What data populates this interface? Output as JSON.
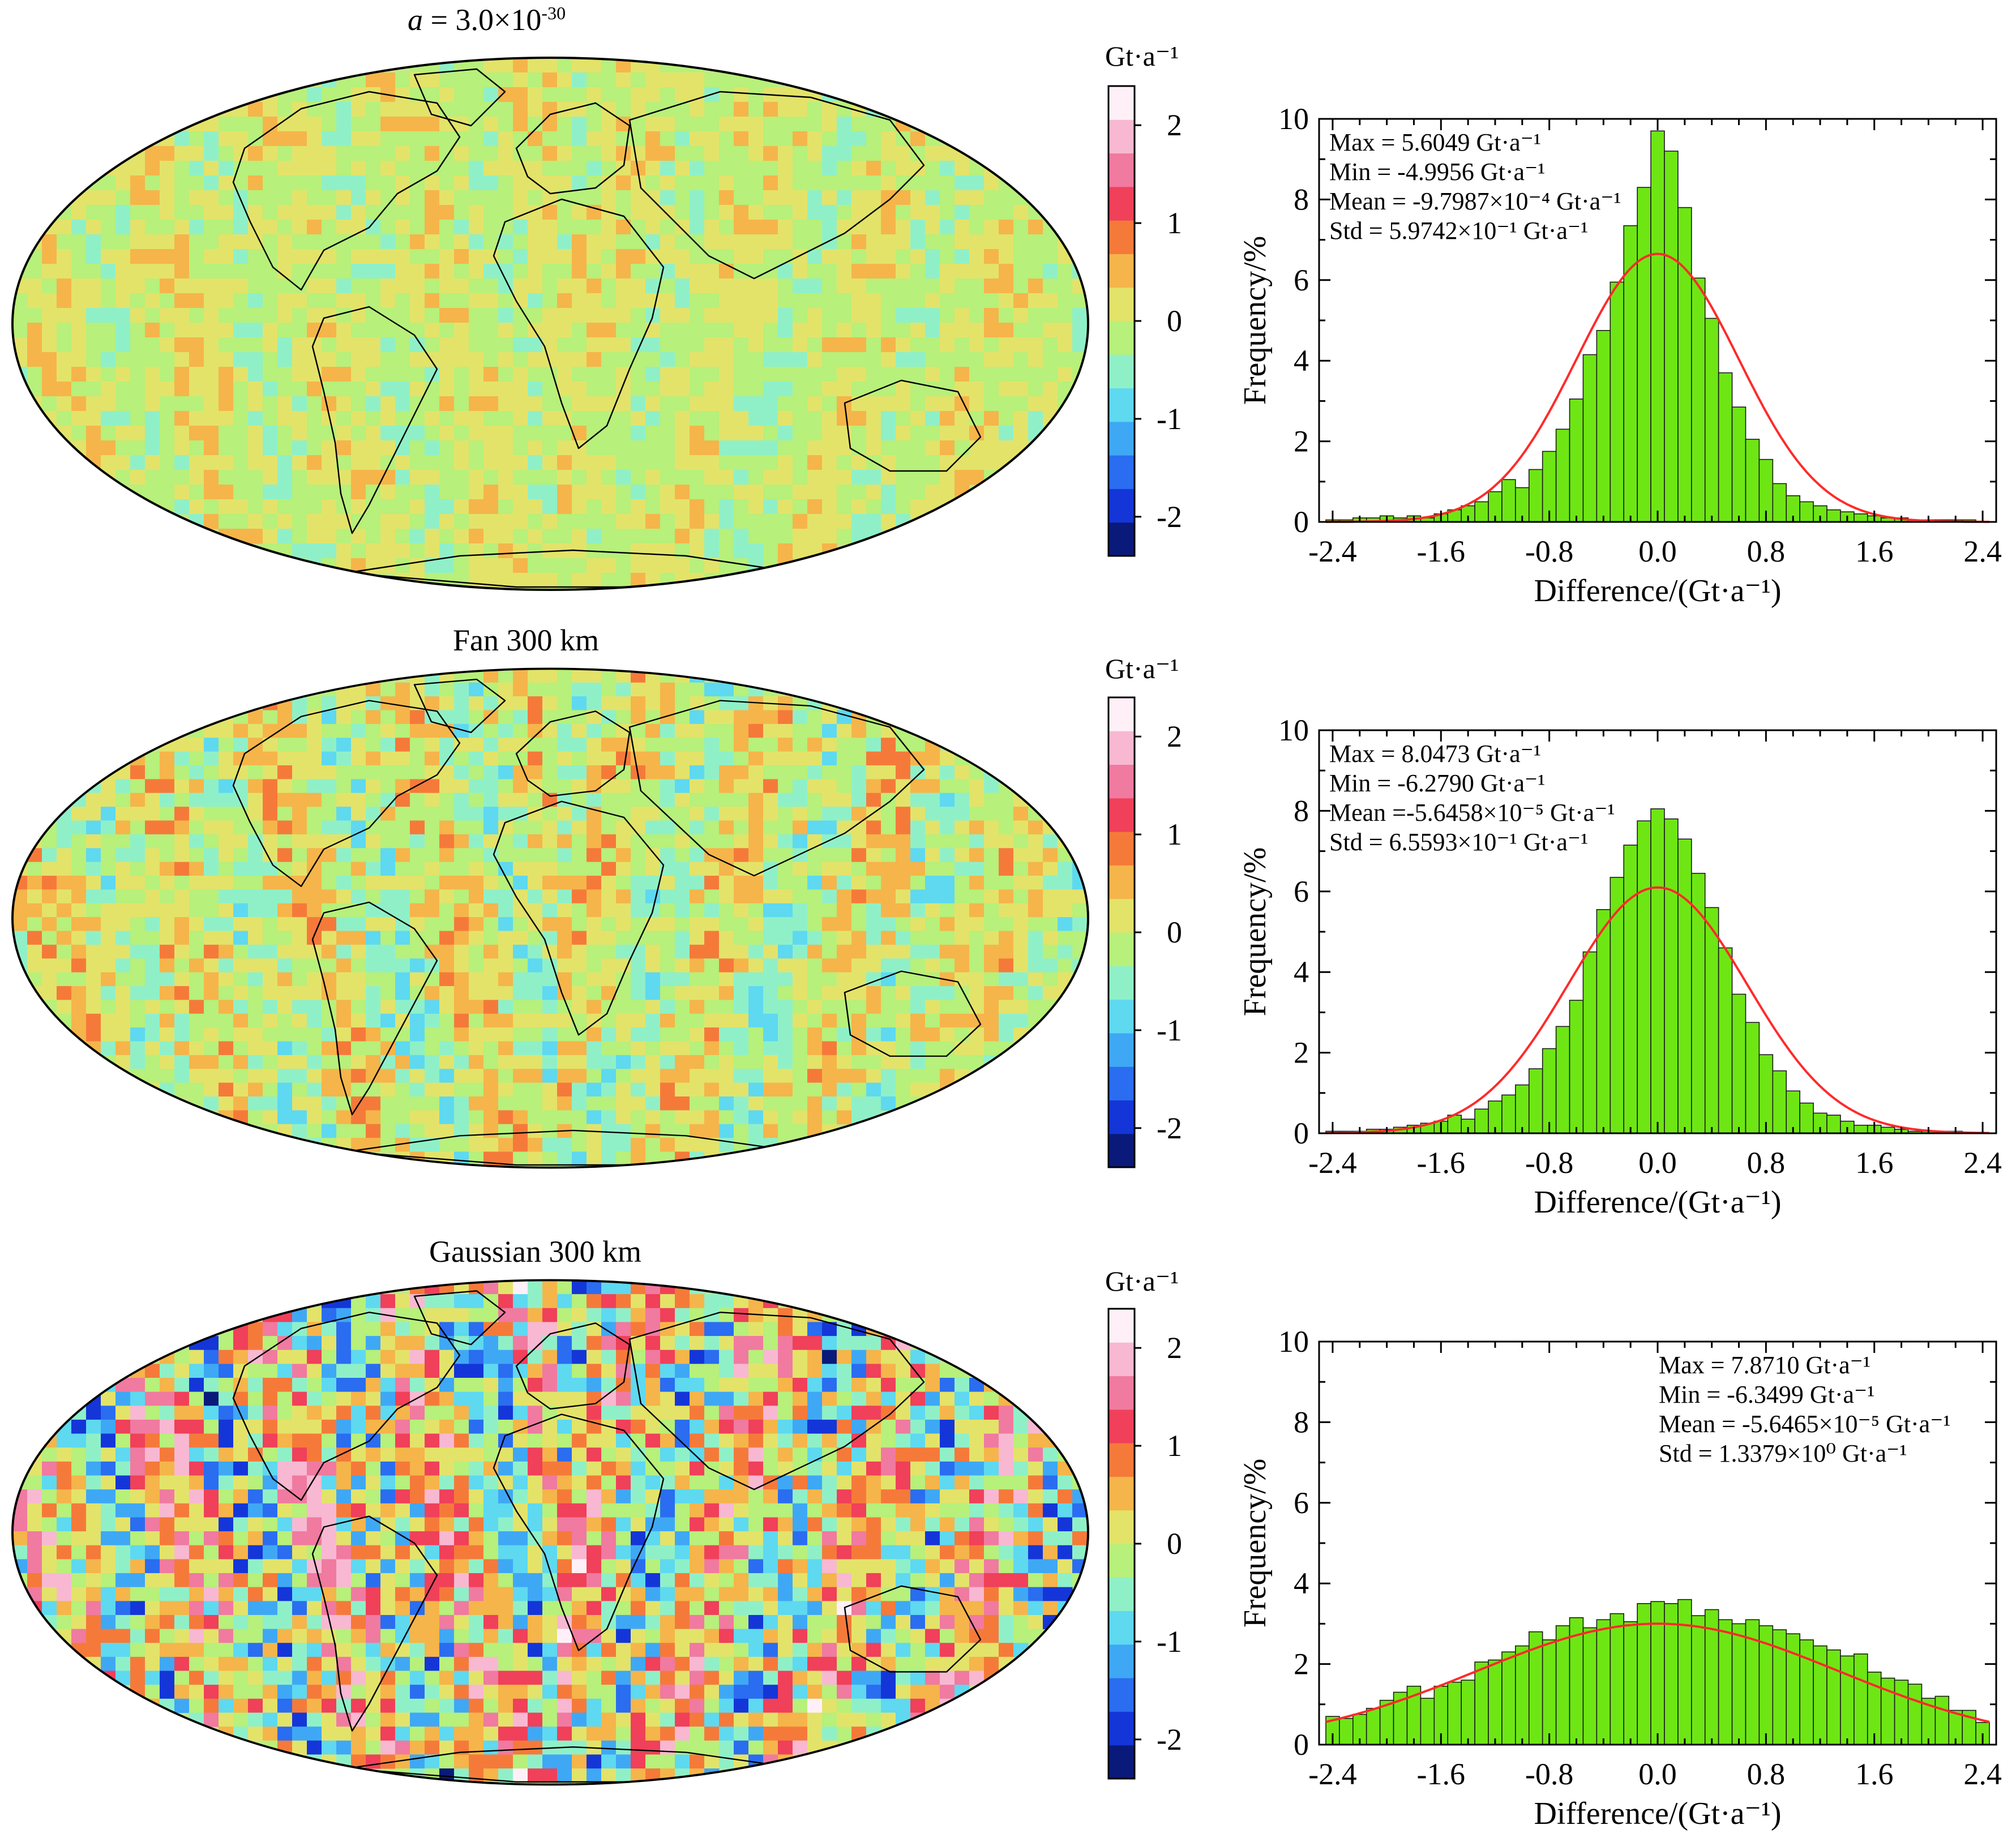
{
  "colors": {
    "bar_fill": "#6ee614",
    "bar_edge": "#1a1a1a",
    "fit_line": "#ff2a2a",
    "ocean_base": "#c4e88a",
    "coast": "#000000"
  },
  "colorbar": {
    "unit_label": "Gt·a⁻¹",
    "ticks": [
      2,
      1,
      0,
      -1,
      -2
    ],
    "tick_labels": [
      "2",
      "1",
      "0",
      "-1",
      "-2"
    ],
    "range": [
      -2.4,
      2.4
    ],
    "colors": [
      "#0a1a7a",
      "#1436d8",
      "#2a6df0",
      "#3fa8f5",
      "#5ed9f0",
      "#8ff0c8",
      "#b7f07a",
      "#e3e36a",
      "#f5b54a",
      "#f57a3a",
      "#f0405a",
      "#f07aa0",
      "#f8b8d2",
      "#fff0f8"
    ]
  },
  "panels": [
    {
      "map_title": "a = 3.0×10⁻³⁰",
      "map_title_parts": {
        "italic": "a",
        "rest": " = 3.0×10",
        "sup": "-30"
      },
      "noise_level": 0.35,
      "stats": [
        "Max = 5.6049 Gt·a⁻¹",
        "Min = -4.9956 Gt·a⁻¹",
        "Mean = -9.7987×10⁻⁴ Gt·a⁻¹",
        "Std = 5.9742×10⁻¹ Gt·a⁻¹"
      ],
      "stats_position": "top-left"
    },
    {
      "map_title": "Fan 300 km",
      "noise_level": 0.55,
      "stats": [
        "Max = 8.0473 Gt·a⁻¹",
        "Min = -6.2790 Gt·a⁻¹",
        "Mean =-5.6458×10⁻⁵ Gt·a⁻¹",
        "Std = 6.5593×10⁻¹ Gt·a⁻¹"
      ],
      "stats_position": "top-left"
    },
    {
      "map_title": "Gaussian 300 km",
      "noise_level": 1.3,
      "stats": [
        "Max = 7.8710 Gt·a⁻¹",
        "Min = -6.3499 Gt·a⁻¹",
        "Mean = -5.6465×10⁻⁵ Gt·a⁻¹",
        "Std = 1.3379×10⁰ Gt·a⁻¹"
      ],
      "stats_position": "top-right"
    }
  ],
  "chart_data": [
    {
      "type": "bar",
      "title": "",
      "xlabel": "Difference/(Gt·a⁻¹)",
      "ylabel": "Frequency/%",
      "xlim": [
        -2.5,
        2.5
      ],
      "ylim": [
        0,
        10
      ],
      "x_ticks": [
        -2.4,
        -1.6,
        -0.8,
        0.0,
        0.8,
        1.6,
        2.4
      ],
      "x_tick_labels": [
        "-2.4",
        "-1.6",
        "-0.8",
        "0.0",
        "0.8",
        "1.6",
        "2.4"
      ],
      "y_ticks": [
        0,
        2,
        4,
        6,
        8,
        10
      ],
      "y_tick_labels": [
        "0",
        "2",
        "4",
        "6",
        "8",
        "10"
      ],
      "bin_width": 0.1,
      "bin_centers": [
        -2.4,
        -2.3,
        -2.2,
        -2.1,
        -2.0,
        -1.9,
        -1.8,
        -1.7,
        -1.6,
        -1.5,
        -1.4,
        -1.3,
        -1.2,
        -1.1,
        -1.0,
        -0.9,
        -0.8,
        -0.7,
        -0.6,
        -0.5,
        -0.4,
        -0.3,
        -0.2,
        -0.1,
        0.0,
        0.1,
        0.2,
        0.3,
        0.4,
        0.5,
        0.6,
        0.7,
        0.8,
        0.9,
        1.0,
        1.1,
        1.2,
        1.3,
        1.4,
        1.5,
        1.6,
        1.7,
        1.8,
        1.9,
        2.0,
        2.1,
        2.2,
        2.3,
        2.4
      ],
      "values": [
        0.05,
        0.05,
        0.1,
        0.1,
        0.15,
        0.1,
        0.15,
        0.1,
        0.2,
        0.3,
        0.4,
        0.5,
        0.75,
        1.05,
        0.85,
        1.3,
        1.75,
        2.3,
        3.05,
        4.15,
        4.75,
        5.95,
        7.35,
        8.3,
        9.7,
        9.2,
        7.8,
        6.05,
        5.05,
        3.7,
        2.85,
        2.05,
        1.55,
        0.95,
        0.65,
        0.5,
        0.4,
        0.3,
        0.25,
        0.2,
        0.15,
        0.1,
        0.1,
        0.05,
        0.05,
        0.05,
        0.05,
        0.05,
        0.0
      ],
      "fit": {
        "type": "normal",
        "mean": 0.0,
        "std": 0.6,
        "peak": 6.65,
        "label": "normal fit"
      },
      "series": [
        {
          "name": "histogram"
        },
        {
          "name": "normal fit"
        }
      ]
    },
    {
      "type": "bar",
      "title": "",
      "xlabel": "Difference/(Gt·a⁻¹)",
      "ylabel": "Frequency/%",
      "xlim": [
        -2.5,
        2.5
      ],
      "ylim": [
        0,
        10
      ],
      "x_ticks": [
        -2.4,
        -1.6,
        -0.8,
        0.0,
        0.8,
        1.6,
        2.4
      ],
      "x_tick_labels": [
        "-2.4",
        "-1.6",
        "-0.8",
        "0.0",
        "0.8",
        "1.6",
        "2.4"
      ],
      "y_ticks": [
        0,
        2,
        4,
        6,
        8,
        10
      ],
      "y_tick_labels": [
        "0",
        "2",
        "4",
        "6",
        "8",
        "10"
      ],
      "bin_width": 0.1,
      "bin_centers": [
        -2.4,
        -2.3,
        -2.2,
        -2.1,
        -2.0,
        -1.9,
        -1.8,
        -1.7,
        -1.6,
        -1.5,
        -1.4,
        -1.3,
        -1.2,
        -1.1,
        -1.0,
        -0.9,
        -0.8,
        -0.7,
        -0.6,
        -0.5,
        -0.4,
        -0.3,
        -0.2,
        -0.1,
        0.0,
        0.1,
        0.2,
        0.3,
        0.4,
        0.5,
        0.6,
        0.7,
        0.8,
        0.9,
        1.0,
        1.1,
        1.2,
        1.3,
        1.4,
        1.5,
        1.6,
        1.7,
        1.8,
        1.9,
        2.0,
        2.1,
        2.2,
        2.3,
        2.4
      ],
      "values": [
        0.05,
        0.05,
        0.05,
        0.1,
        0.1,
        0.15,
        0.2,
        0.25,
        0.3,
        0.45,
        0.35,
        0.6,
        0.8,
        0.95,
        1.2,
        1.6,
        2.1,
        2.65,
        3.3,
        4.5,
        5.55,
        6.35,
        7.15,
        7.75,
        8.05,
        7.8,
        7.3,
        6.45,
        5.6,
        4.6,
        3.45,
        2.75,
        1.95,
        1.55,
        1.05,
        0.75,
        0.5,
        0.45,
        0.3,
        0.2,
        0.2,
        0.15,
        0.1,
        0.05,
        0.05,
        0.05,
        0.05,
        0.0,
        0.0
      ],
      "fit": {
        "type": "normal",
        "mean": 0.0,
        "std": 0.66,
        "peak": 6.1,
        "label": "normal fit"
      },
      "series": [
        {
          "name": "histogram"
        },
        {
          "name": "normal fit"
        }
      ]
    },
    {
      "type": "bar",
      "title": "",
      "xlabel": "Difference/(Gt·a⁻¹)",
      "ylabel": "Frequency/%",
      "xlim": [
        -2.5,
        2.5
      ],
      "ylim": [
        0,
        10
      ],
      "x_ticks": [
        -2.4,
        -1.6,
        -0.8,
        0.0,
        0.8,
        1.6,
        2.4
      ],
      "x_tick_labels": [
        "-2.4",
        "-1.6",
        "-0.8",
        "0.0",
        "0.8",
        "1.6",
        "2.4"
      ],
      "y_ticks": [
        0,
        2,
        4,
        6,
        8,
        10
      ],
      "y_tick_labels": [
        "0",
        "2",
        "4",
        "6",
        "8",
        "10"
      ],
      "bin_width": 0.1,
      "bin_centers": [
        -2.4,
        -2.3,
        -2.2,
        -2.1,
        -2.0,
        -1.9,
        -1.8,
        -1.7,
        -1.6,
        -1.5,
        -1.4,
        -1.3,
        -1.2,
        -1.1,
        -1.0,
        -0.9,
        -0.8,
        -0.7,
        -0.6,
        -0.5,
        -0.4,
        -0.3,
        -0.2,
        -0.1,
        0.0,
        0.1,
        0.2,
        0.3,
        0.4,
        0.5,
        0.6,
        0.7,
        0.8,
        0.9,
        1.0,
        1.1,
        1.2,
        1.3,
        1.4,
        1.5,
        1.6,
        1.7,
        1.8,
        1.9,
        2.0,
        2.1,
        2.2,
        2.3,
        2.4
      ],
      "values": [
        0.7,
        0.65,
        0.75,
        0.9,
        1.1,
        1.3,
        1.45,
        1.15,
        1.45,
        1.55,
        1.6,
        2.05,
        2.1,
        2.3,
        2.45,
        2.8,
        2.6,
        2.95,
        3.15,
        2.9,
        3.1,
        3.25,
        3.05,
        3.5,
        3.55,
        3.5,
        3.6,
        3.2,
        3.35,
        3.1,
        3.0,
        3.1,
        2.95,
        2.85,
        2.75,
        2.6,
        2.45,
        2.35,
        2.2,
        2.25,
        1.8,
        1.65,
        1.6,
        1.5,
        1.15,
        1.2,
        0.85,
        0.85,
        0.55
      ],
      "fit": {
        "type": "normal",
        "mean": 0.0,
        "std": 1.34,
        "peak": 3.0,
        "label": "normal fit"
      },
      "series": [
        {
          "name": "histogram"
        },
        {
          "name": "normal fit"
        }
      ]
    }
  ]
}
